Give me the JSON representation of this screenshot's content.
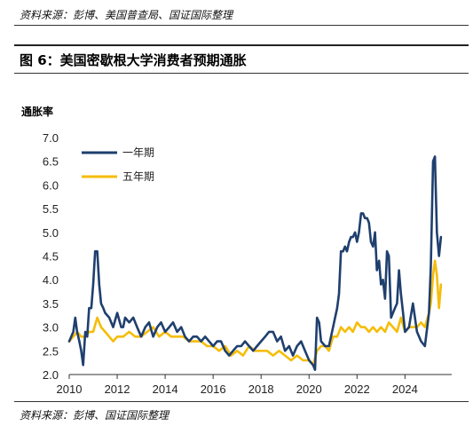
{
  "header": {
    "source_top": "资料来源：彭博、美国普查局、国证国际整理",
    "figure_title": "图 6：美国密歇根大学消费者预期通胀"
  },
  "footer": {
    "source_bottom": "资料来源：彭博、国证国际整理"
  },
  "colors": {
    "one_year": "#1f3f6e",
    "five_year": "#f5bd0a",
    "axis": "#333333"
  },
  "chart_data": {
    "type": "line",
    "title": "图 6：美国密歇根大学消费者预期通胀",
    "ylabel": "通胀率",
    "xlabel": "",
    "xlim": [
      2010,
      2025.8
    ],
    "ylim": [
      2.0,
      7.0
    ],
    "yticks": [
      "2.0",
      "2.5",
      "3.0",
      "3.5",
      "4.0",
      "4.5",
      "5.0",
      "5.5",
      "6.0",
      "6.5",
      "7.0"
    ],
    "xticks": [
      "2010",
      "2012",
      "2014",
      "2016",
      "2018",
      "2020",
      "2022",
      "2024"
    ],
    "grid": false,
    "legend_position": "top-left",
    "series": [
      {
        "name": "一年期",
        "color": "#1f3f6e",
        "x": [
          2010.0,
          2010.17,
          2010.25,
          2010.33,
          2010.42,
          2010.5,
          2010.58,
          2010.67,
          2010.75,
          2010.83,
          2010.92,
          2011.0,
          2011.08,
          2011.17,
          2011.25,
          2011.33,
          2011.42,
          2011.5,
          2011.67,
          2011.83,
          2012.0,
          2012.17,
          2012.25,
          2012.33,
          2012.5,
          2012.67,
          2012.83,
          2013.0,
          2013.17,
          2013.33,
          2013.5,
          2013.67,
          2013.83,
          2014.0,
          2014.17,
          2014.33,
          2014.5,
          2014.67,
          2014.83,
          2015.0,
          2015.17,
          2015.33,
          2015.5,
          2015.67,
          2015.83,
          2016.0,
          2016.17,
          2016.33,
          2016.5,
          2016.67,
          2016.83,
          2017.0,
          2017.17,
          2017.33,
          2017.5,
          2017.67,
          2017.83,
          2018.0,
          2018.17,
          2018.33,
          2018.5,
          2018.67,
          2018.83,
          2019.0,
          2019.17,
          2019.33,
          2019.5,
          2019.67,
          2019.83,
          2020.0,
          2020.17,
          2020.25,
          2020.33,
          2020.42,
          2020.5,
          2020.67,
          2020.83,
          2021.0,
          2021.17,
          2021.25,
          2021.33,
          2021.42,
          2021.5,
          2021.58,
          2021.67,
          2021.75,
          2021.83,
          2021.92,
          2022.0,
          2022.08,
          2022.17,
          2022.25,
          2022.33,
          2022.42,
          2022.5,
          2022.58,
          2022.67,
          2022.75,
          2022.83,
          2022.92,
          2023.0,
          2023.08,
          2023.17,
          2023.25,
          2023.33,
          2023.42,
          2023.5,
          2023.58,
          2023.67,
          2023.75,
          2023.83,
          2023.92,
          2024.0,
          2024.17,
          2024.33,
          2024.5,
          2024.67,
          2024.83,
          2025.0,
          2025.08,
          2025.17,
          2025.25,
          2025.33,
          2025.42,
          2025.5
        ],
        "values": [
          2.7,
          2.9,
          3.2,
          2.9,
          2.7,
          2.5,
          2.2,
          2.9,
          2.8,
          3.4,
          3.4,
          3.9,
          4.6,
          4.6,
          3.9,
          3.5,
          3.4,
          3.3,
          3.2,
          3.0,
          3.3,
          3.0,
          3.0,
          3.2,
          3.1,
          3.2,
          3.0,
          2.8,
          3.0,
          3.1,
          2.8,
          3.0,
          3.1,
          2.9,
          3.0,
          3.1,
          2.9,
          3.0,
          2.8,
          2.7,
          2.8,
          2.8,
          2.7,
          2.8,
          2.7,
          2.6,
          2.7,
          2.7,
          2.5,
          2.4,
          2.5,
          2.6,
          2.6,
          2.7,
          2.6,
          2.5,
          2.6,
          2.7,
          2.8,
          2.9,
          2.9,
          2.7,
          2.8,
          2.5,
          2.6,
          2.4,
          2.6,
          2.7,
          2.5,
          2.3,
          2.2,
          2.1,
          3.2,
          3.1,
          2.7,
          2.6,
          2.6,
          3.0,
          3.4,
          3.7,
          4.6,
          4.6,
          4.7,
          4.6,
          4.8,
          4.9,
          4.9,
          5.0,
          4.8,
          5.0,
          5.4,
          5.4,
          5.3,
          5.3,
          5.2,
          4.8,
          4.7,
          5.0,
          4.2,
          4.4,
          3.9,
          4.0,
          3.6,
          4.6,
          4.5,
          3.2,
          3.3,
          3.4,
          3.5,
          4.2,
          3.7,
          3.3,
          2.9,
          3.0,
          3.5,
          2.9,
          2.7,
          2.6,
          3.3,
          4.3,
          6.5,
          6.6,
          5.0,
          4.5,
          4.9
        ]
      },
      {
        "name": "五年期",
        "color": "#f5bd0a",
        "x": [
          2010.0,
          2010.17,
          2010.33,
          2010.5,
          2010.67,
          2010.83,
          2011.0,
          2011.17,
          2011.33,
          2011.5,
          2011.67,
          2011.83,
          2012.0,
          2012.25,
          2012.5,
          2012.75,
          2013.0,
          2013.25,
          2013.5,
          2013.75,
          2014.0,
          2014.25,
          2014.5,
          2014.75,
          2015.0,
          2015.25,
          2015.5,
          2015.75,
          2016.0,
          2016.25,
          2016.5,
          2016.75,
          2017.0,
          2017.25,
          2017.5,
          2017.75,
          2018.0,
          2018.25,
          2018.5,
          2018.75,
          2019.0,
          2019.25,
          2019.5,
          2019.75,
          2020.0,
          2020.17,
          2020.33,
          2020.5,
          2020.67,
          2020.83,
          2021.0,
          2021.17,
          2021.33,
          2021.5,
          2021.67,
          2021.83,
          2022.0,
          2022.17,
          2022.33,
          2022.5,
          2022.67,
          2022.83,
          2023.0,
          2023.17,
          2023.33,
          2023.5,
          2023.67,
          2023.83,
          2024.0,
          2024.17,
          2024.33,
          2024.5,
          2024.67,
          2024.83,
          2025.0,
          2025.08,
          2025.17,
          2025.25,
          2025.33,
          2025.42,
          2025.5
        ],
        "values": [
          2.7,
          2.8,
          2.9,
          2.8,
          2.8,
          2.9,
          2.9,
          3.2,
          3.0,
          2.9,
          2.8,
          2.7,
          2.8,
          2.8,
          2.9,
          2.8,
          2.8,
          2.9,
          3.0,
          2.8,
          2.9,
          2.8,
          2.8,
          2.8,
          2.7,
          2.7,
          2.7,
          2.6,
          2.6,
          2.5,
          2.6,
          2.4,
          2.5,
          2.4,
          2.6,
          2.5,
          2.5,
          2.5,
          2.4,
          2.5,
          2.4,
          2.3,
          2.4,
          2.3,
          2.3,
          2.2,
          2.5,
          2.6,
          2.6,
          2.5,
          2.8,
          2.8,
          3.0,
          2.9,
          3.0,
          2.9,
          3.1,
          3.0,
          3.0,
          2.9,
          3.0,
          2.9,
          3.0,
          2.9,
          3.1,
          3.0,
          2.9,
          3.2,
          2.9,
          3.0,
          3.0,
          3.0,
          3.1,
          3.0,
          3.3,
          3.5,
          4.1,
          4.4,
          4.1,
          3.4,
          3.9
        ]
      }
    ]
  }
}
